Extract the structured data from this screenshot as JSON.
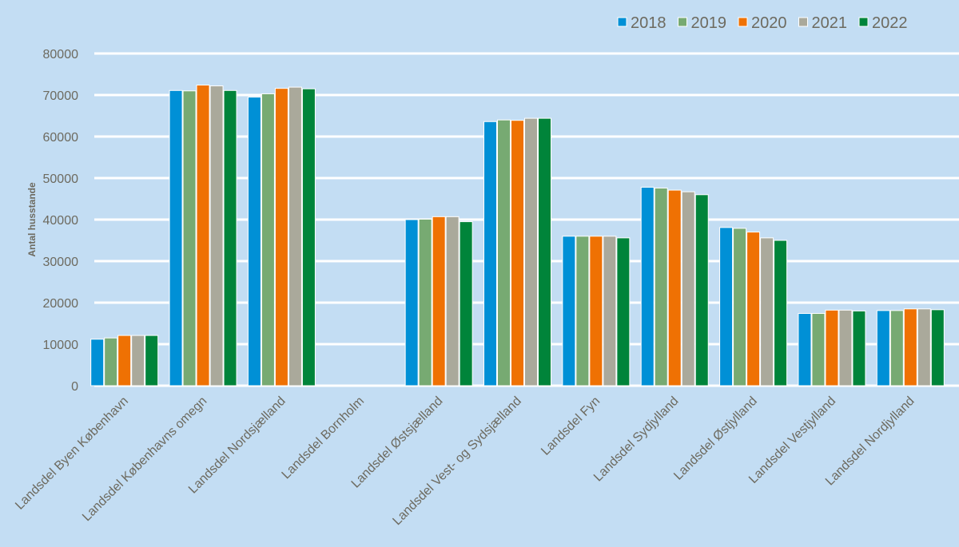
{
  "chart_data": {
    "type": "bar",
    "title": "",
    "xlabel": "",
    "ylabel": "Antal husstande",
    "ylim": [
      0,
      80000
    ],
    "yticks": [
      0,
      10000,
      20000,
      30000,
      40000,
      50000,
      60000,
      70000,
      80000
    ],
    "grid": true,
    "legend_position": "top-right",
    "categories": [
      "Landsdel Byen København",
      "Landsdel Københavns omegn",
      "Landsdel Nordsjælland",
      "Landsdel Bornholm",
      "Landsdel Østsjælland",
      "Landsdel Vest- og Sydsjælland",
      "Landsdel Fyn",
      "Landsdel Sydjylland",
      "Landsdel Østjylland",
      "Landsdel Vestjylland",
      "Landsdel Nordjylland"
    ],
    "series": [
      {
        "name": "2018",
        "color": "#0090d6",
        "values": [
          11200,
          71100,
          69500,
          0,
          40000,
          63600,
          36000,
          47800,
          38100,
          17400,
          18100
        ]
      },
      {
        "name": "2019",
        "color": "#77aa72",
        "values": [
          11500,
          71000,
          70300,
          0,
          40100,
          64000,
          36000,
          47600,
          37900,
          17400,
          18100
        ]
      },
      {
        "name": "2020",
        "color": "#ef7103",
        "values": [
          12100,
          72400,
          71600,
          0,
          40700,
          63900,
          36000,
          47100,
          37000,
          18200,
          18500
        ]
      },
      {
        "name": "2021",
        "color": "#aaa99b",
        "values": [
          12100,
          72200,
          71900,
          0,
          40700,
          64400,
          36000,
          46700,
          35600,
          18200,
          18500
        ]
      },
      {
        "name": "2022",
        "color": "#00843a",
        "values": [
          12100,
          71100,
          71500,
          0,
          39500,
          64400,
          35600,
          46000,
          35000,
          18000,
          18300
        ]
      }
    ]
  },
  "colors": {
    "background": "#c3ddf3",
    "gridline": "#ffffff",
    "text": "#6d6a5f"
  }
}
